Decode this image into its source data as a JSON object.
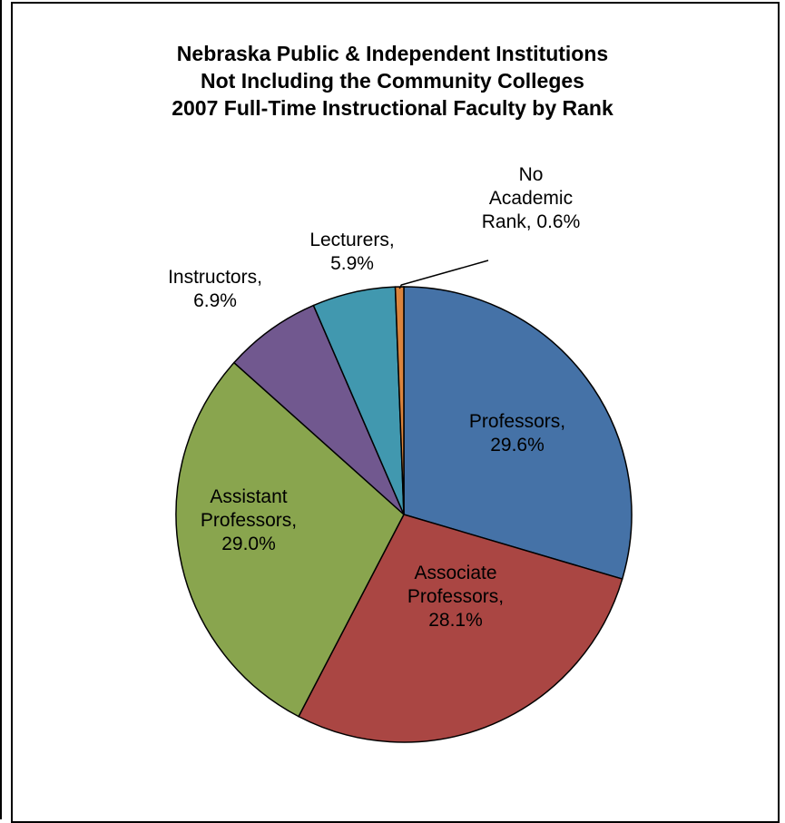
{
  "chart_data": {
    "type": "pie",
    "title": [
      "Nebraska Public & Independent Institutions",
      "Not Including the Community Colleges",
      "2007 Full-Time Instructional Faculty by Rank"
    ],
    "slices": [
      {
        "label": [
          "Professors,",
          "29.6%"
        ],
        "value": 29.6,
        "color": "#4572A7"
      },
      {
        "label": [
          "Associate",
          "Professors,",
          "28.1%"
        ],
        "value": 28.1,
        "color": "#AA4643"
      },
      {
        "label": [
          "Assistant",
          "Professors,",
          "29.0%"
        ],
        "value": 29.0,
        "color": "#89A54E"
      },
      {
        "label": [
          "Instructors,",
          "6.9%"
        ],
        "value": 6.9,
        "color": "#71588F"
      },
      {
        "label": [
          "Lecturers,",
          "5.9%"
        ],
        "value": 5.9,
        "color": "#4198AF"
      },
      {
        "label": [
          "No",
          "Academic",
          "Rank, 0.6%"
        ],
        "value": 0.6,
        "color": "#DB843D"
      }
    ],
    "start": "12 o'clock",
    "direction": "clockwise",
    "legend": "none"
  }
}
